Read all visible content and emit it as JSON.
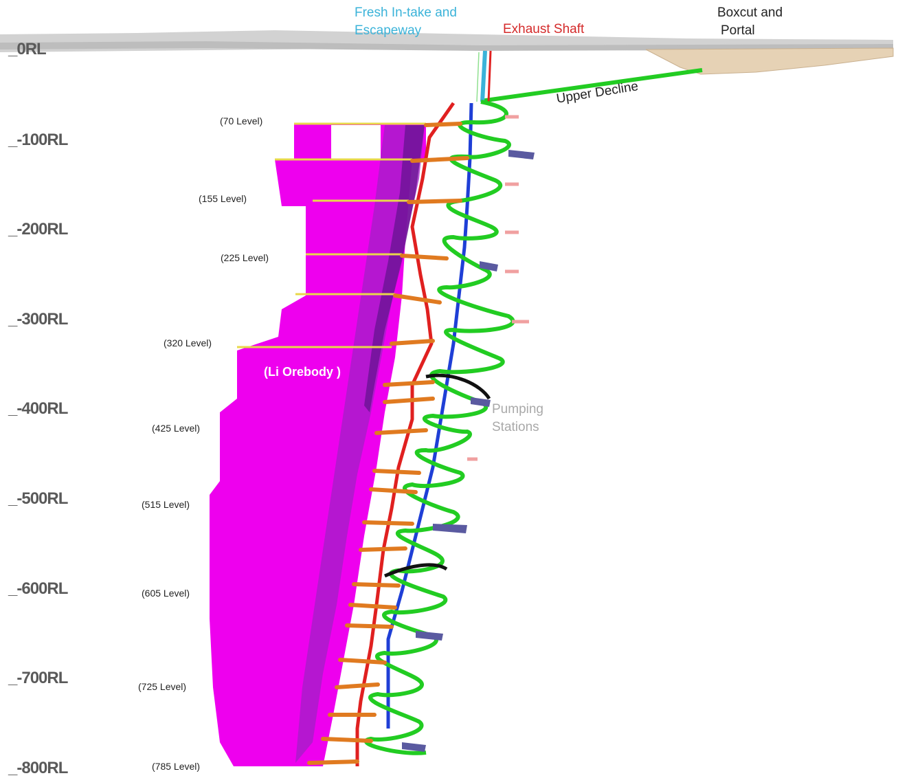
{
  "labels": {
    "intake_line1": "Fresh In-take and",
    "intake_line2": "Escapeway",
    "exhaust": "Exhaust Shaft",
    "boxcut_line1": "Boxcut and",
    "boxcut_line2": "Portal",
    "upper_decline": "Upper Decline",
    "pumping_line1": "Pumping",
    "pumping_line2": "Stations",
    "orebody": "(Li  Orebody )"
  },
  "rl_labels": [
    "_0RL",
    "_-100RL",
    "_-200RL",
    "_-300RL",
    "_-400RL",
    "_-500RL",
    "_-600RL",
    "_-700RL",
    "_-800RL"
  ],
  "levels": [
    "(70 Level)",
    "(155 Level)",
    "(225 Level)",
    "(320 Level)",
    "(425 Level)",
    "(515 Level)",
    "(605 Level)",
    "(725 Level)",
    "(785 Level)"
  ],
  "colors": {
    "orebody": "#ee00ee",
    "orebody_dark": "#7a1a9a",
    "decline": "#22cc22",
    "exhaust": "#e02020",
    "intake": "#3bb3d9",
    "raise": "#1f3fd6",
    "crosscut": "#e07a20",
    "pump": "#5a5aa0",
    "surface": "#cfcfcf",
    "boxcut": "#e6d2b5"
  }
}
